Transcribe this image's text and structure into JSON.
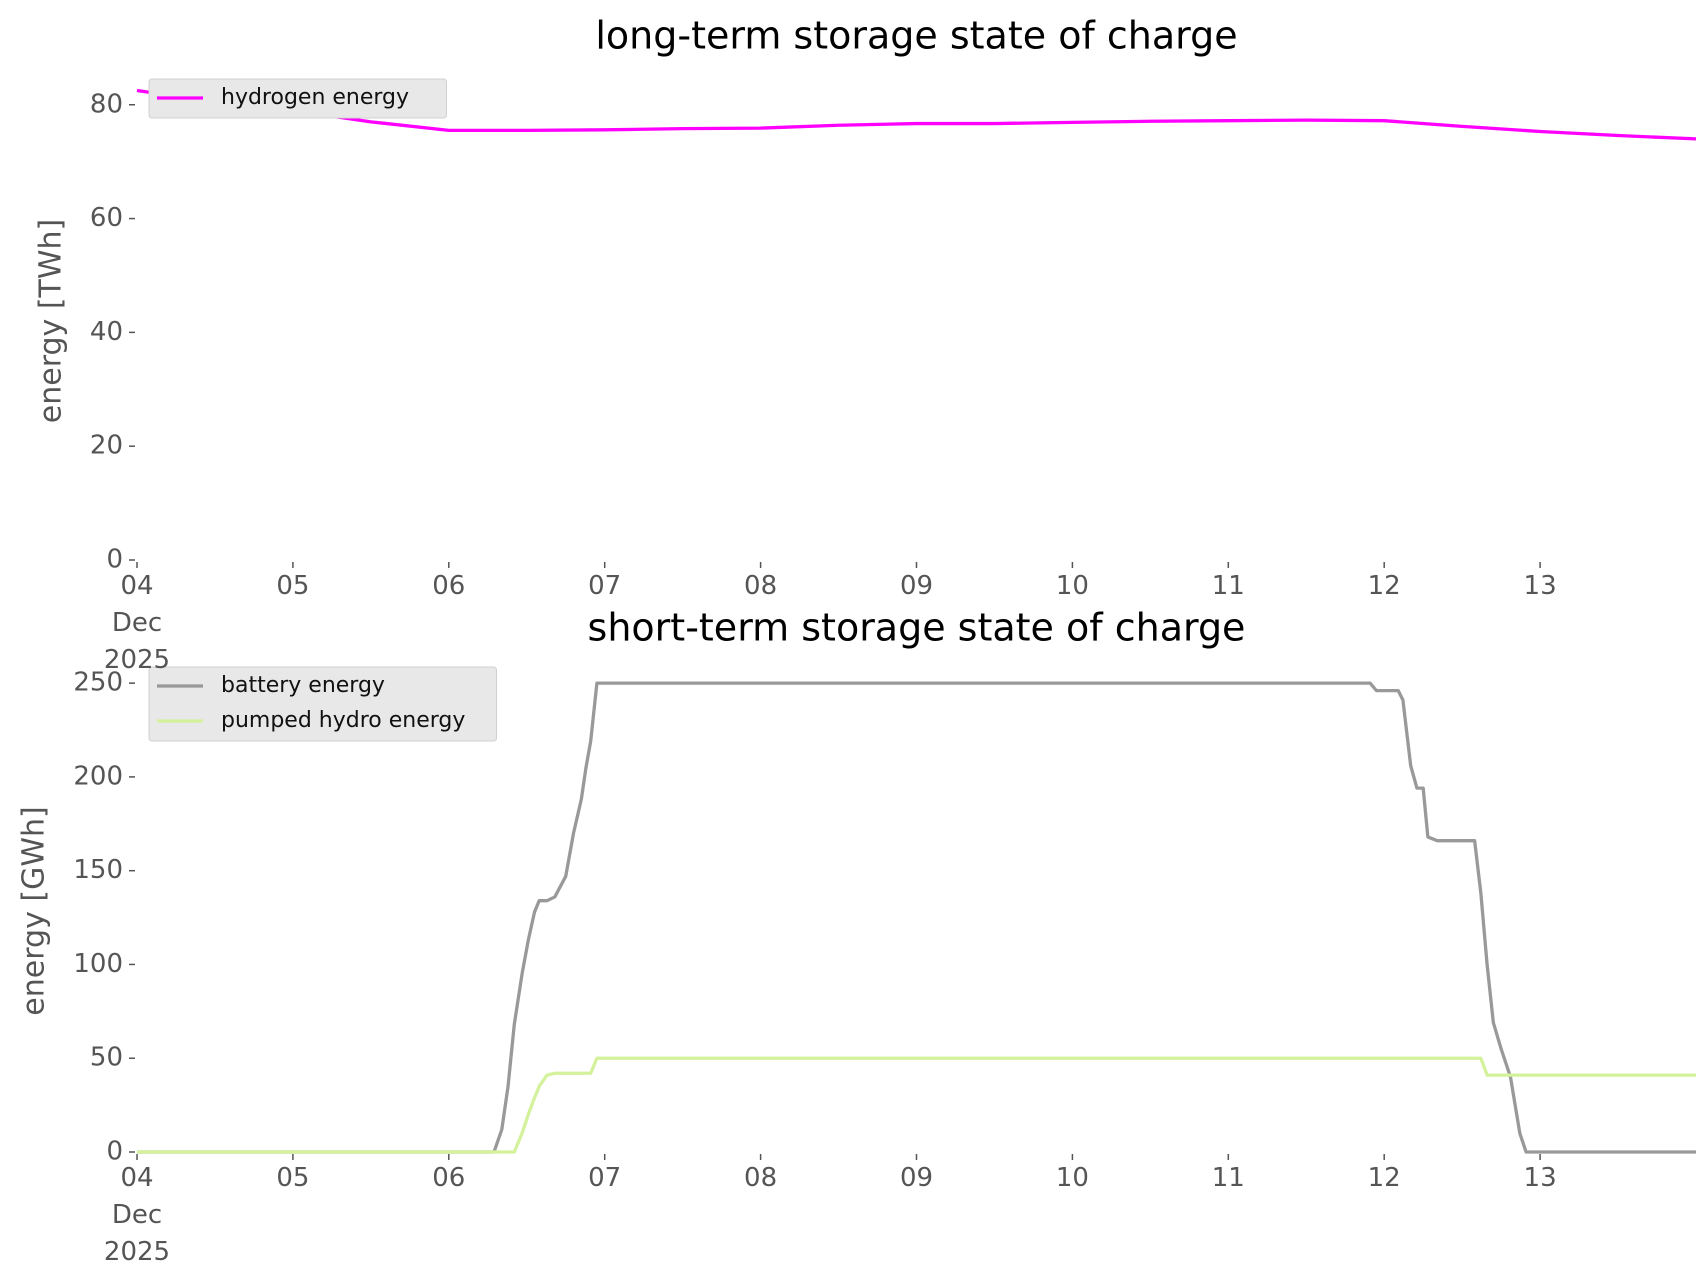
{
  "chart_data": [
    {
      "type": "line",
      "title": "long-term storage state of charge",
      "y_label": "energy [TWh]",
      "x": [
        4,
        4.5,
        5,
        5.5,
        6,
        6.5,
        7,
        7.5,
        8,
        8.5,
        9,
        9.5,
        10,
        10.5,
        11,
        11.5,
        12,
        12.5,
        13,
        13.5,
        14
      ],
      "series": [
        {
          "name": "hydrogen energy",
          "color": "#ff00ff",
          "values": [
            82.5,
            80.5,
            79,
            77,
            75.5,
            75.5,
            75.6,
            75.8,
            75.9,
            76.4,
            76.7,
            76.7,
            76.9,
            77.1,
            77.2,
            77.3,
            77.2,
            76.2,
            75.3,
            74.6,
            74
          ]
        }
      ],
      "xlim": [
        4,
        14
      ],
      "xticks": [
        {
          "value": 4,
          "label": "04\nDec\n2025"
        },
        {
          "value": 5,
          "label": "05"
        },
        {
          "value": 6,
          "label": "06"
        },
        {
          "value": 7,
          "label": "07"
        },
        {
          "value": 8,
          "label": "08"
        },
        {
          "value": 9,
          "label": "09"
        },
        {
          "value": 10,
          "label": "10"
        },
        {
          "value": 11,
          "label": "11"
        },
        {
          "value": 12,
          "label": "12"
        },
        {
          "value": 13,
          "label": "13"
        }
      ],
      "ylim": [
        0,
        84
      ],
      "yticks": [
        0,
        20,
        40,
        60,
        80
      ],
      "grid": false,
      "legend": "upper left"
    },
    {
      "type": "line",
      "title": "short-term storage state of charge",
      "y_label": "energy [GWh]",
      "x": [
        4,
        6.29,
        6.34,
        6.38,
        6.42,
        6.47,
        6.51,
        6.55,
        6.58,
        6.63,
        6.68,
        6.75,
        6.8,
        6.85,
        6.88,
        6.91,
        6.95,
        11.91,
        11.95,
        12.09,
        12.12,
        12.17,
        12.21,
        12.25,
        12.28,
        12.34,
        12.58,
        12.62,
        12.66,
        12.7,
        12.75,
        12.81,
        12.87,
        12.91,
        14
      ],
      "series": [
        {
          "name": "battery energy",
          "color": "#999999",
          "values": [
            0,
            0,
            12,
            35,
            68,
            95,
            113,
            128,
            134,
            134,
            136,
            147,
            170,
            188,
            205,
            219,
            250,
            250,
            246,
            246,
            241,
            206,
            194,
            194,
            168,
            166,
            166,
            138,
            100,
            69,
            55,
            40,
            10,
            0,
            0
          ]
        },
        {
          "name": "pumped hydro energy",
          "color": "#d4f29c",
          "values": [
            0,
            0,
            0,
            0,
            0,
            10,
            20,
            29,
            35,
            41,
            42,
            42,
            42,
            42,
            42,
            42,
            50,
            50,
            50,
            50,
            50,
            50,
            50,
            50,
            50,
            50,
            50,
            50,
            41,
            41,
            41,
            41,
            41,
            41,
            41
          ]
        }
      ],
      "xlim": [
        4,
        14
      ],
      "xticks": [
        {
          "value": 4,
          "label": "04\nDec\n2025"
        },
        {
          "value": 5,
          "label": "05"
        },
        {
          "value": 6,
          "label": "06"
        },
        {
          "value": 7,
          "label": "07"
        },
        {
          "value": 8,
          "label": "08"
        },
        {
          "value": 9,
          "label": "09"
        },
        {
          "value": 10,
          "label": "10"
        },
        {
          "value": 11,
          "label": "11"
        },
        {
          "value": 12,
          "label": "12"
        },
        {
          "value": 13,
          "label": "13"
        }
      ],
      "ylim": [
        0,
        257
      ],
      "yticks": [
        0,
        50,
        100,
        150,
        200,
        250
      ],
      "grid": false,
      "legend": "upper left"
    }
  ]
}
